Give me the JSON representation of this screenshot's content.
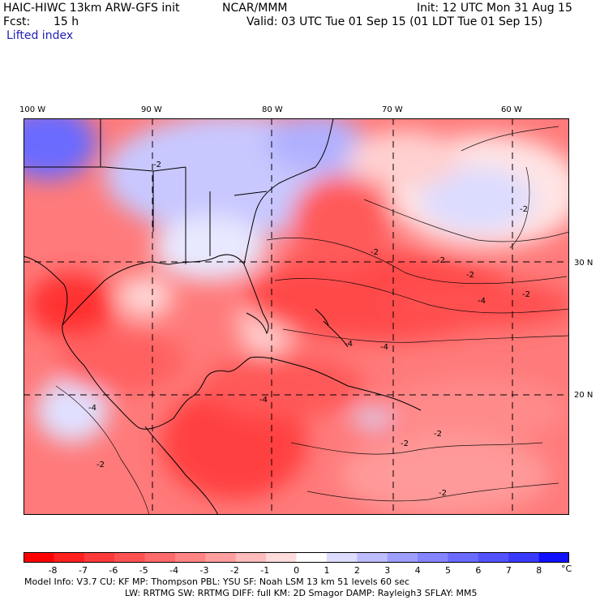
{
  "header": {
    "model_line": "HAIC-HIWC 13km ARW-GFS init",
    "org": "NCAR/MMM",
    "init": "Init: 12 UTC Mon 31 Aug 15",
    "fcst_label": "Fcst:",
    "fcst_value": "15 h",
    "valid": "Valid: 03 UTC Tue 01 Sep 15 (01 LDT Tue 01 Sep 15)",
    "field": "Lifted index"
  },
  "map": {
    "lon_labels": [
      "100 W",
      "90 W",
      "80 W",
      "70 W",
      "60 W"
    ],
    "lat_labels": [
      "30 N",
      "20 N"
    ],
    "contour_labels": [
      "-2",
      "-4",
      "-2",
      "-4",
      "-2",
      "-2",
      "-4",
      "-2",
      "-2",
      "-2",
      "-2",
      "-4",
      "-2",
      "-2",
      "-4"
    ]
  },
  "colorbar": {
    "colors": [
      "#ff0000",
      "#ff2020",
      "#ff3a3a",
      "#ff5252",
      "#ff6a6a",
      "#ff8484",
      "#ff9e9e",
      "#ffbcbc",
      "#ffdcdc",
      "#ffffff",
      "#dcdcff",
      "#bcbcff",
      "#9e9eff",
      "#8484ff",
      "#6a6aff",
      "#5252ff",
      "#3a3aff",
      "#1010ff"
    ],
    "labels": [
      "-8",
      "-7",
      "-6",
      "-5",
      "-4",
      "-3",
      "-2",
      "-1",
      "0",
      "1",
      "2",
      "3",
      "4",
      "5",
      "6",
      "7",
      "8"
    ],
    "unit": "°C"
  },
  "footer": {
    "line1": "Model Info: V3.7     CU: KF      MP: Thompson      PBL: YSU       SF: Noah LSM      13 km     51 levels   60 sec",
    "line2": "LW: RRTMG    SW: RRTMG   DIFF: full   KM: 2D Smagor DAMP: Rayleigh3   SFLAY: MM5"
  }
}
